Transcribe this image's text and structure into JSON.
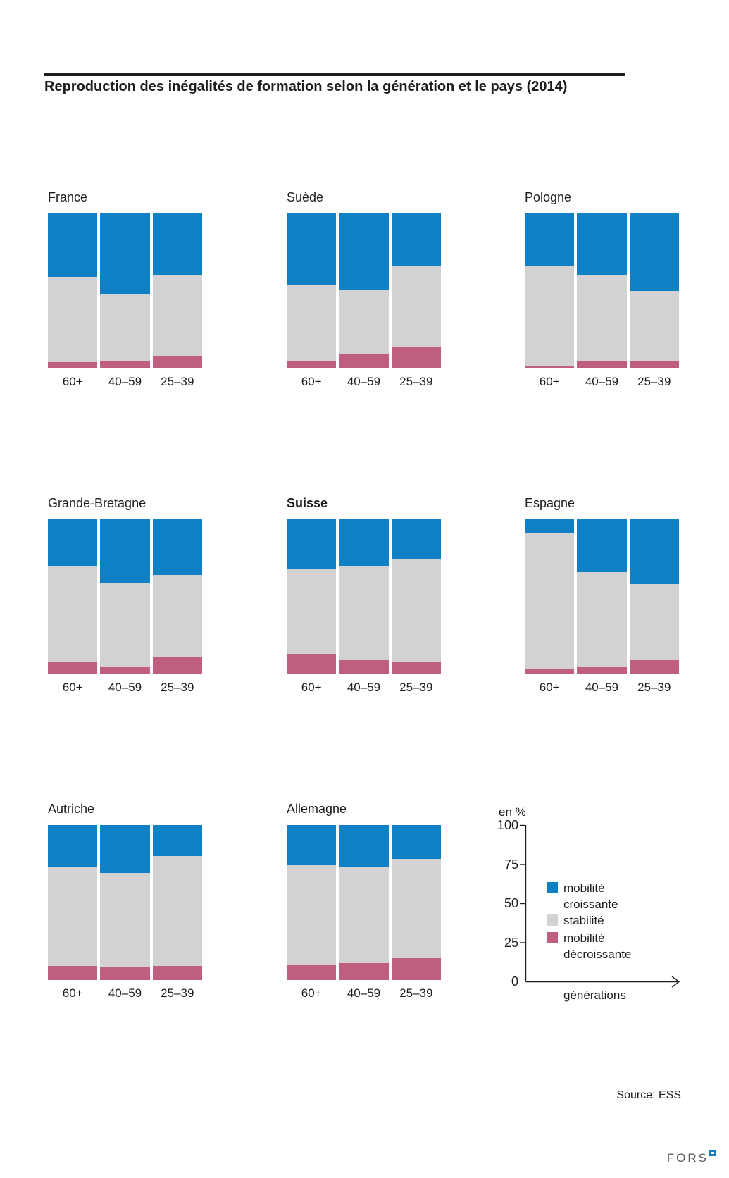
{
  "header": {
    "title": "Reproduction des inégalités de formation selon la génération et le pays (2014)"
  },
  "chart_data": {
    "type": "bar",
    "stacked": true,
    "orientation": "vertical",
    "unit_label": "en %",
    "xlabel": "générations",
    "ylim": [
      0,
      100
    ],
    "yticks": [
      100,
      75,
      50,
      25,
      0
    ],
    "grid": false,
    "legend_position": "bottom-right cell of chart grid",
    "categories": [
      "60+",
      "40–59",
      "25–39"
    ],
    "series_order": [
      "mobilité croissante",
      "stabilité",
      "mobilité décroissante"
    ],
    "legend": [
      {
        "label": "mobilité croissante",
        "color": "#1080c4"
      },
      {
        "label": "stabilité",
        "color": "#d3d2d2"
      },
      {
        "label": "mobilité décroissante",
        "color": "#c05e80"
      }
    ],
    "value_note": "values per bar are percentages top-to-bottom: [mobilité croissante, stabilité, mobilité décroissante]",
    "countries": [
      {
        "name": "France",
        "bold": false,
        "values": [
          [
            41,
            55,
            4
          ],
          [
            52,
            43,
            5
          ],
          [
            40,
            52,
            8
          ]
        ]
      },
      {
        "name": "Suède",
        "bold": false,
        "values": [
          [
            46,
            49,
            5
          ],
          [
            49,
            42,
            9
          ],
          [
            34,
            52,
            14
          ]
        ]
      },
      {
        "name": "Pologne",
        "bold": false,
        "values": [
          [
            34,
            64,
            2
          ],
          [
            40,
            55,
            5
          ],
          [
            50,
            45,
            5
          ]
        ]
      },
      {
        "name": "Grande-Bretagne",
        "bold": false,
        "values": [
          [
            30,
            62,
            8
          ],
          [
            41,
            54,
            5
          ],
          [
            36,
            53,
            11
          ]
        ]
      },
      {
        "name": "Suisse",
        "bold": true,
        "values": [
          [
            32,
            55,
            13
          ],
          [
            30,
            61,
            9
          ],
          [
            26,
            66,
            8
          ]
        ]
      },
      {
        "name": "Espagne",
        "bold": false,
        "values": [
          [
            9,
            88,
            3
          ],
          [
            34,
            61,
            5
          ],
          [
            42,
            49,
            9
          ]
        ]
      },
      {
        "name": "Autriche",
        "bold": false,
        "values": [
          [
            27,
            64,
            9
          ],
          [
            31,
            61,
            8
          ],
          [
            20,
            71,
            9
          ]
        ]
      },
      {
        "name": "Allemagne",
        "bold": false,
        "values": [
          [
            26,
            64,
            10
          ],
          [
            27,
            62,
            11
          ],
          [
            22,
            64,
            14
          ]
        ]
      }
    ]
  },
  "footer": {
    "source": "Source: ESS",
    "logo_text": "FORS"
  }
}
